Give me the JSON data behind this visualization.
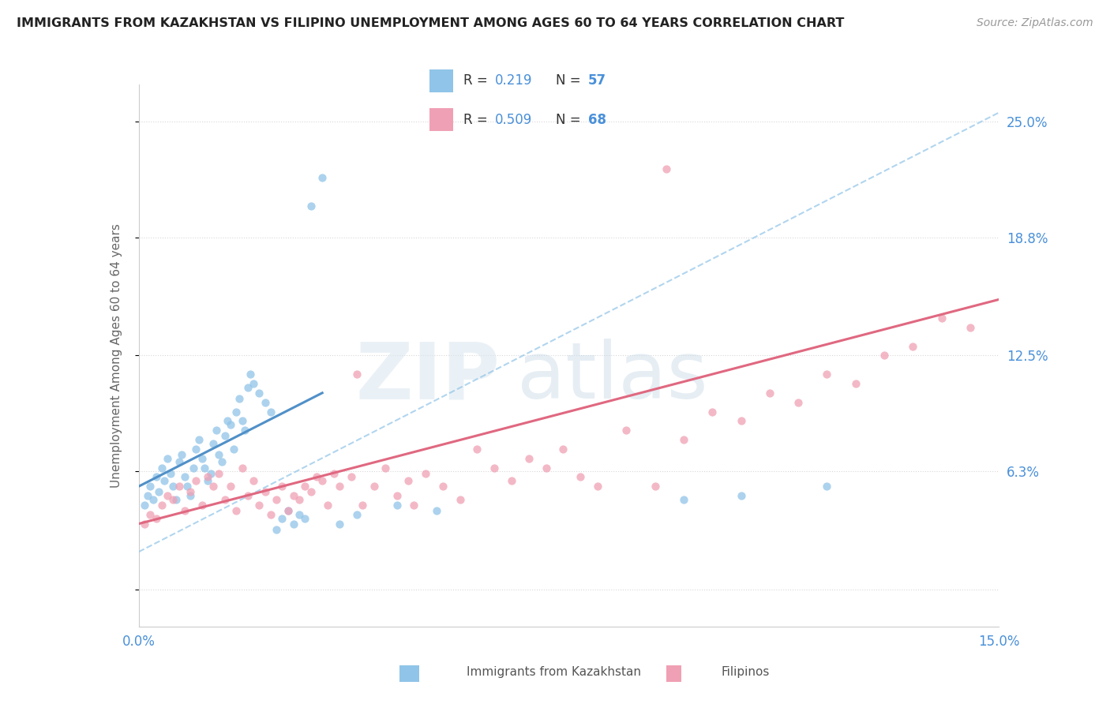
{
  "title": "IMMIGRANTS FROM KAZAKHSTAN VS FILIPINO UNEMPLOYMENT AMONG AGES 60 TO 64 YEARS CORRELATION CHART",
  "source": "Source: ZipAtlas.com",
  "xmin": 0.0,
  "xmax": 15.0,
  "ymin": -2.0,
  "ymax": 27.0,
  "ylabel_ticks": [
    0.0,
    6.3,
    12.5,
    18.8,
    25.0
  ],
  "ylabel_tick_labels": [
    "",
    "6.3%",
    "12.5%",
    "18.8%",
    "25.0%"
  ],
  "background_color": "#ffffff",
  "grid_color": "#d8d8d8",
  "axis_label_color": "#4a90d9",
  "kaz_color": "#90c4e8",
  "fil_color": "#f0a0b4",
  "kaz_line_color": "#5090c8",
  "fil_line_color": "#e06880",
  "kaz_dashed_color": "#90c4e8",
  "kazakhstan_scatter_x": [
    0.1,
    0.15,
    0.2,
    0.25,
    0.3,
    0.35,
    0.4,
    0.45,
    0.5,
    0.55,
    0.6,
    0.65,
    0.7,
    0.75,
    0.8,
    0.85,
    0.9,
    0.95,
    1.0,
    1.05,
    1.1,
    1.15,
    1.2,
    1.25,
    1.3,
    1.35,
    1.4,
    1.45,
    1.5,
    1.55,
    1.6,
    1.65,
    1.7,
    1.75,
    1.8,
    1.85,
    1.9,
    1.95,
    2.0,
    2.1,
    2.2,
    2.3,
    2.4,
    2.5,
    2.6,
    2.7,
    2.8,
    2.9,
    3.0,
    3.2,
    3.5,
    3.8,
    4.5,
    5.2,
    9.5,
    10.5,
    12.0
  ],
  "kazakhstan_scatter_y": [
    4.5,
    5.0,
    5.5,
    4.8,
    6.0,
    5.2,
    6.5,
    5.8,
    7.0,
    6.2,
    5.5,
    4.8,
    6.8,
    7.2,
    6.0,
    5.5,
    5.0,
    6.5,
    7.5,
    8.0,
    7.0,
    6.5,
    5.8,
    6.2,
    7.8,
    8.5,
    7.2,
    6.8,
    8.2,
    9.0,
    8.8,
    7.5,
    9.5,
    10.2,
    9.0,
    8.5,
    10.8,
    11.5,
    11.0,
    10.5,
    10.0,
    9.5,
    3.2,
    3.8,
    4.2,
    3.5,
    4.0,
    3.8,
    20.5,
    22.0,
    3.5,
    4.0,
    4.5,
    4.2,
    4.8,
    5.0,
    5.5
  ],
  "filipino_scatter_x": [
    0.1,
    0.2,
    0.3,
    0.4,
    0.5,
    0.6,
    0.7,
    0.8,
    0.9,
    1.0,
    1.1,
    1.2,
    1.3,
    1.4,
    1.5,
    1.6,
    1.7,
    1.8,
    1.9,
    2.0,
    2.1,
    2.2,
    2.3,
    2.4,
    2.5,
    2.6,
    2.7,
    2.8,
    2.9,
    3.0,
    3.1,
    3.2,
    3.3,
    3.4,
    3.5,
    3.7,
    3.9,
    4.1,
    4.3,
    4.5,
    4.7,
    5.0,
    5.3,
    5.6,
    5.9,
    6.2,
    6.5,
    6.8,
    7.1,
    7.4,
    7.7,
    8.0,
    8.5,
    9.0,
    9.5,
    10.0,
    10.5,
    11.0,
    11.5,
    12.0,
    12.5,
    13.0,
    13.5,
    14.0,
    14.5,
    9.2,
    3.8,
    4.8
  ],
  "filipino_scatter_y": [
    3.5,
    4.0,
    3.8,
    4.5,
    5.0,
    4.8,
    5.5,
    4.2,
    5.2,
    5.8,
    4.5,
    6.0,
    5.5,
    6.2,
    4.8,
    5.5,
    4.2,
    6.5,
    5.0,
    5.8,
    4.5,
    5.2,
    4.0,
    4.8,
    5.5,
    4.2,
    5.0,
    4.8,
    5.5,
    5.2,
    6.0,
    5.8,
    4.5,
    6.2,
    5.5,
    6.0,
    4.5,
    5.5,
    6.5,
    5.0,
    5.8,
    6.2,
    5.5,
    4.8,
    7.5,
    6.5,
    5.8,
    7.0,
    6.5,
    7.5,
    6.0,
    5.5,
    8.5,
    5.5,
    8.0,
    9.5,
    9.0,
    10.5,
    10.0,
    11.5,
    11.0,
    12.5,
    13.0,
    14.5,
    14.0,
    22.5,
    11.5,
    4.5
  ],
  "kaz_reg_x0": 0.0,
  "kaz_reg_x1": 3.2,
  "kaz_reg_y0": 5.5,
  "kaz_reg_y1": 10.5,
  "kaz_dashed_x0": 0.0,
  "kaz_dashed_x1": 15.0,
  "kaz_dashed_y0": 2.0,
  "kaz_dashed_y1": 25.5,
  "fil_reg_x0": 0.0,
  "fil_reg_x1": 15.0,
  "fil_reg_y0": 3.5,
  "fil_reg_y1": 15.5
}
